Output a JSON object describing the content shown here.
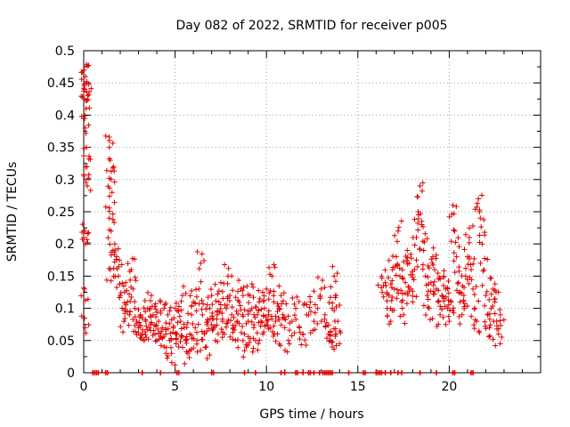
{
  "chart_data": {
    "type": "scatter",
    "title": "Day 082 of 2022, SRMTID for receiver p005",
    "xlabel": "GPS time / hours",
    "ylabel": "SRMTID / TECUs",
    "xlim": [
      0,
      25
    ],
    "ylim": [
      0,
      0.5
    ],
    "x_ticks": [
      0,
      5,
      10,
      15,
      20
    ],
    "x_tick_labels": [
      "0",
      "5",
      "10",
      "15",
      "20"
    ],
    "y_ticks": [
      0,
      0.05,
      0.1,
      0.15,
      0.2,
      0.25,
      0.3,
      0.35,
      0.4,
      0.45,
      0.5
    ],
    "y_tick_labels": [
      "0",
      "0.05",
      "0.1",
      "0.15",
      "0.2",
      "0.25",
      "0.3",
      "0.35",
      "0.4",
      "0.45",
      "0.5"
    ],
    "grid": true,
    "marker": "plus",
    "color": "#e00000",
    "series": [
      {
        "name": "SRMTID",
        "points": [
          [
            0.02,
            0.47
          ],
          [
            0.05,
            0.44
          ],
          [
            0.08,
            0.38
          ],
          [
            0.1,
            0.46
          ],
          [
            0.12,
            0.41
          ],
          [
            0.15,
            0.35
          ],
          [
            0.18,
            0.32
          ],
          [
            0.2,
            0.29
          ],
          [
            0.06,
            0.22
          ],
          [
            0.1,
            0.2
          ],
          [
            0.05,
            0.13
          ],
          [
            0.08,
            0.07
          ],
          [
            0.15,
            0.45
          ],
          [
            0.22,
            0.43
          ],
          [
            1.4,
            0.35
          ],
          [
            1.45,
            0.33
          ],
          [
            1.5,
            0.3
          ],
          [
            1.55,
            0.28
          ],
          [
            1.4,
            0.24
          ],
          [
            1.5,
            0.22
          ],
          [
            1.6,
            0.19
          ],
          [
            1.45,
            0.16
          ],
          [
            1.7,
            0.2
          ],
          [
            1.8,
            0.18
          ],
          [
            1.9,
            0.15
          ],
          [
            2.0,
            0.12
          ],
          [
            2.1,
            0.1
          ],
          [
            2.2,
            0.08
          ],
          [
            2.3,
            0.14
          ],
          [
            2.4,
            0.11
          ],
          [
            2.5,
            0.09
          ],
          [
            2.6,
            0.16
          ],
          [
            2.7,
            0.13
          ],
          [
            2.8,
            0.1
          ],
          [
            2.9,
            0.08
          ],
          [
            3.0,
            0.07
          ],
          [
            3.1,
            0.09
          ],
          [
            3.2,
            0.06
          ],
          [
            3.3,
            0.05
          ],
          [
            3.4,
            0.08
          ],
          [
            3.5,
            0.1
          ],
          [
            3.6,
            0.07
          ],
          [
            3.7,
            0.12
          ],
          [
            3.8,
            0.09
          ],
          [
            3.9,
            0.06
          ],
          [
            4.0,
            0.05
          ],
          [
            4.1,
            0.08
          ],
          [
            4.2,
            0.11
          ],
          [
            4.3,
            0.07
          ],
          [
            4.4,
            0.04
          ],
          [
            4.5,
            0.06
          ],
          [
            4.6,
            0.09
          ],
          [
            4.7,
            0.05
          ],
          [
            4.8,
            0.03
          ],
          [
            4.9,
            0.07
          ],
          [
            5.0,
            0.1
          ],
          [
            5.1,
            0.06
          ],
          [
            5.2,
            0.04
          ],
          [
            5.3,
            0.08
          ],
          [
            5.4,
            0.12
          ],
          [
            5.5,
            0.07
          ],
          [
            5.6,
            0.05
          ],
          [
            5.7,
            0.03
          ],
          [
            5.8,
            0.06
          ],
          [
            5.9,
            0.09
          ],
          [
            6.0,
            0.11
          ],
          [
            6.1,
            0.07
          ],
          [
            6.2,
            0.05
          ],
          [
            6.3,
            0.13
          ],
          [
            6.4,
            0.17
          ],
          [
            6.5,
            0.09
          ],
          [
            6.6,
            0.06
          ],
          [
            6.7,
            0.04
          ],
          [
            6.8,
            0.08
          ],
          [
            6.9,
            0.1
          ],
          [
            7.0,
            0.12
          ],
          [
            7.1,
            0.07
          ],
          [
            7.2,
            0.05
          ],
          [
            7.3,
            0.09
          ],
          [
            7.4,
            0.11
          ],
          [
            7.5,
            0.14
          ],
          [
            7.6,
            0.08
          ],
          [
            7.7,
            0.06
          ],
          [
            7.8,
            0.1
          ],
          [
            7.9,
            0.15
          ],
          [
            8.0,
            0.12
          ],
          [
            8.1,
            0.09
          ],
          [
            8.2,
            0.07
          ],
          [
            8.3,
            0.05
          ],
          [
            8.4,
            0.08
          ],
          [
            8.5,
            0.11
          ],
          [
            8.6,
            0.13
          ],
          [
            8.7,
            0.09
          ],
          [
            8.8,
            0.06
          ],
          [
            8.9,
            0.04
          ],
          [
            9.0,
            0.08
          ],
          [
            9.1,
            0.12
          ],
          [
            9.2,
            0.1
          ],
          [
            9.3,
            0.07
          ],
          [
            9.4,
            0.05
          ],
          [
            9.5,
            0.09
          ],
          [
            9.6,
            0.11
          ],
          [
            9.7,
            0.08
          ],
          [
            9.8,
            0.06
          ],
          [
            9.9,
            0.1
          ],
          [
            10.0,
            0.13
          ],
          [
            10.1,
            0.09
          ],
          [
            10.2,
            0.07
          ],
          [
            10.3,
            0.15
          ],
          [
            10.4,
            0.11
          ],
          [
            10.5,
            0.08
          ],
          [
            10.6,
            0.06
          ],
          [
            10.7,
            0.1
          ],
          [
            10.8,
            0.12
          ],
          [
            10.9,
            0.09
          ],
          [
            11.0,
            0.07
          ],
          [
            11.2,
            0.05
          ],
          [
            11.4,
            0.08
          ],
          [
            11.6,
            0.1
          ],
          [
            11.8,
            0.07
          ],
          [
            12.0,
            0.06
          ],
          [
            12.2,
            0.09
          ],
          [
            12.4,
            0.11
          ],
          [
            12.6,
            0.08
          ],
          [
            12.8,
            0.1
          ],
          [
            13.0,
            0.13
          ],
          [
            13.2,
            0.09
          ],
          [
            13.4,
            0.06
          ],
          [
            13.5,
            0.05
          ],
          [
            13.6,
            0.1
          ],
          [
            13.7,
            0.15
          ],
          [
            13.8,
            0.12
          ],
          [
            13.9,
            0.08
          ],
          [
            13.6,
            0.04
          ],
          [
            13.8,
            0.06
          ],
          [
            16.3,
            0.15
          ],
          [
            16.5,
            0.14
          ],
          [
            16.6,
            0.1
          ],
          [
            16.7,
            0.12
          ],
          [
            16.8,
            0.08
          ],
          [
            16.9,
            0.16
          ],
          [
            17.0,
            0.13
          ],
          [
            17.1,
            0.18
          ],
          [
            17.2,
            0.22
          ],
          [
            17.3,
            0.15
          ],
          [
            17.4,
            0.11
          ],
          [
            17.5,
            0.09
          ],
          [
            17.6,
            0.14
          ],
          [
            17.7,
            0.19
          ],
          [
            17.8,
            0.17
          ],
          [
            17.9,
            0.13
          ],
          [
            18.0,
            0.11
          ],
          [
            18.1,
            0.16
          ],
          [
            18.2,
            0.21
          ],
          [
            18.3,
            0.25
          ],
          [
            18.4,
            0.29
          ],
          [
            18.5,
            0.23
          ],
          [
            18.6,
            0.19
          ],
          [
            18.7,
            0.15
          ],
          [
            18.8,
            0.12
          ],
          [
            18.9,
            0.1
          ],
          [
            19.0,
            0.14
          ],
          [
            19.1,
            0.18
          ],
          [
            19.2,
            0.16
          ],
          [
            19.3,
            0.13
          ],
          [
            19.4,
            0.11
          ],
          [
            19.5,
            0.09
          ],
          [
            19.6,
            0.12
          ],
          [
            19.7,
            0.15
          ],
          [
            19.8,
            0.13
          ],
          [
            19.9,
            0.1
          ],
          [
            20.0,
            0.08
          ],
          [
            20.1,
            0.11
          ],
          [
            20.2,
            0.26
          ],
          [
            20.3,
            0.22
          ],
          [
            20.4,
            0.18
          ],
          [
            20.5,
            0.14
          ],
          [
            20.6,
            0.11
          ],
          [
            20.7,
            0.09
          ],
          [
            20.8,
            0.12
          ],
          [
            20.9,
            0.15
          ],
          [
            21.0,
            0.18
          ],
          [
            21.1,
            0.21
          ],
          [
            21.2,
            0.16
          ],
          [
            21.3,
            0.13
          ],
          [
            21.4,
            0.1
          ],
          [
            21.5,
            0.08
          ],
          [
            21.6,
            0.27
          ],
          [
            21.7,
            0.24
          ],
          [
            21.8,
            0.2
          ],
          [
            21.9,
            0.16
          ],
          [
            22.0,
            0.12
          ],
          [
            22.1,
            0.09
          ],
          [
            22.2,
            0.07
          ],
          [
            22.3,
            0.1
          ],
          [
            22.4,
            0.13
          ],
          [
            22.5,
            0.11
          ],
          [
            22.6,
            0.08
          ],
          [
            22.7,
            0.06
          ],
          [
            22.8,
            0.09
          ]
        ]
      }
    ],
    "zero_points_x": [
      0.5,
      0.6,
      0.7,
      0.8,
      1.2,
      1.3,
      3.2,
      4.2,
      5.1,
      5.2,
      7.0,
      7.1,
      8.8,
      9.4,
      10.8,
      11.0,
      11.6,
      11.7,
      12.0,
      12.3,
      12.4,
      12.6,
      12.9,
      13.1,
      13.2,
      13.3,
      13.4,
      13.5,
      13.6,
      14.5,
      15.3,
      15.4,
      16.0,
      16.1,
      16.2,
      16.3,
      16.5,
      16.8,
      17.2,
      17.4,
      18.4,
      19.3,
      20.2,
      20.3,
      21.2,
      21.3
    ]
  }
}
